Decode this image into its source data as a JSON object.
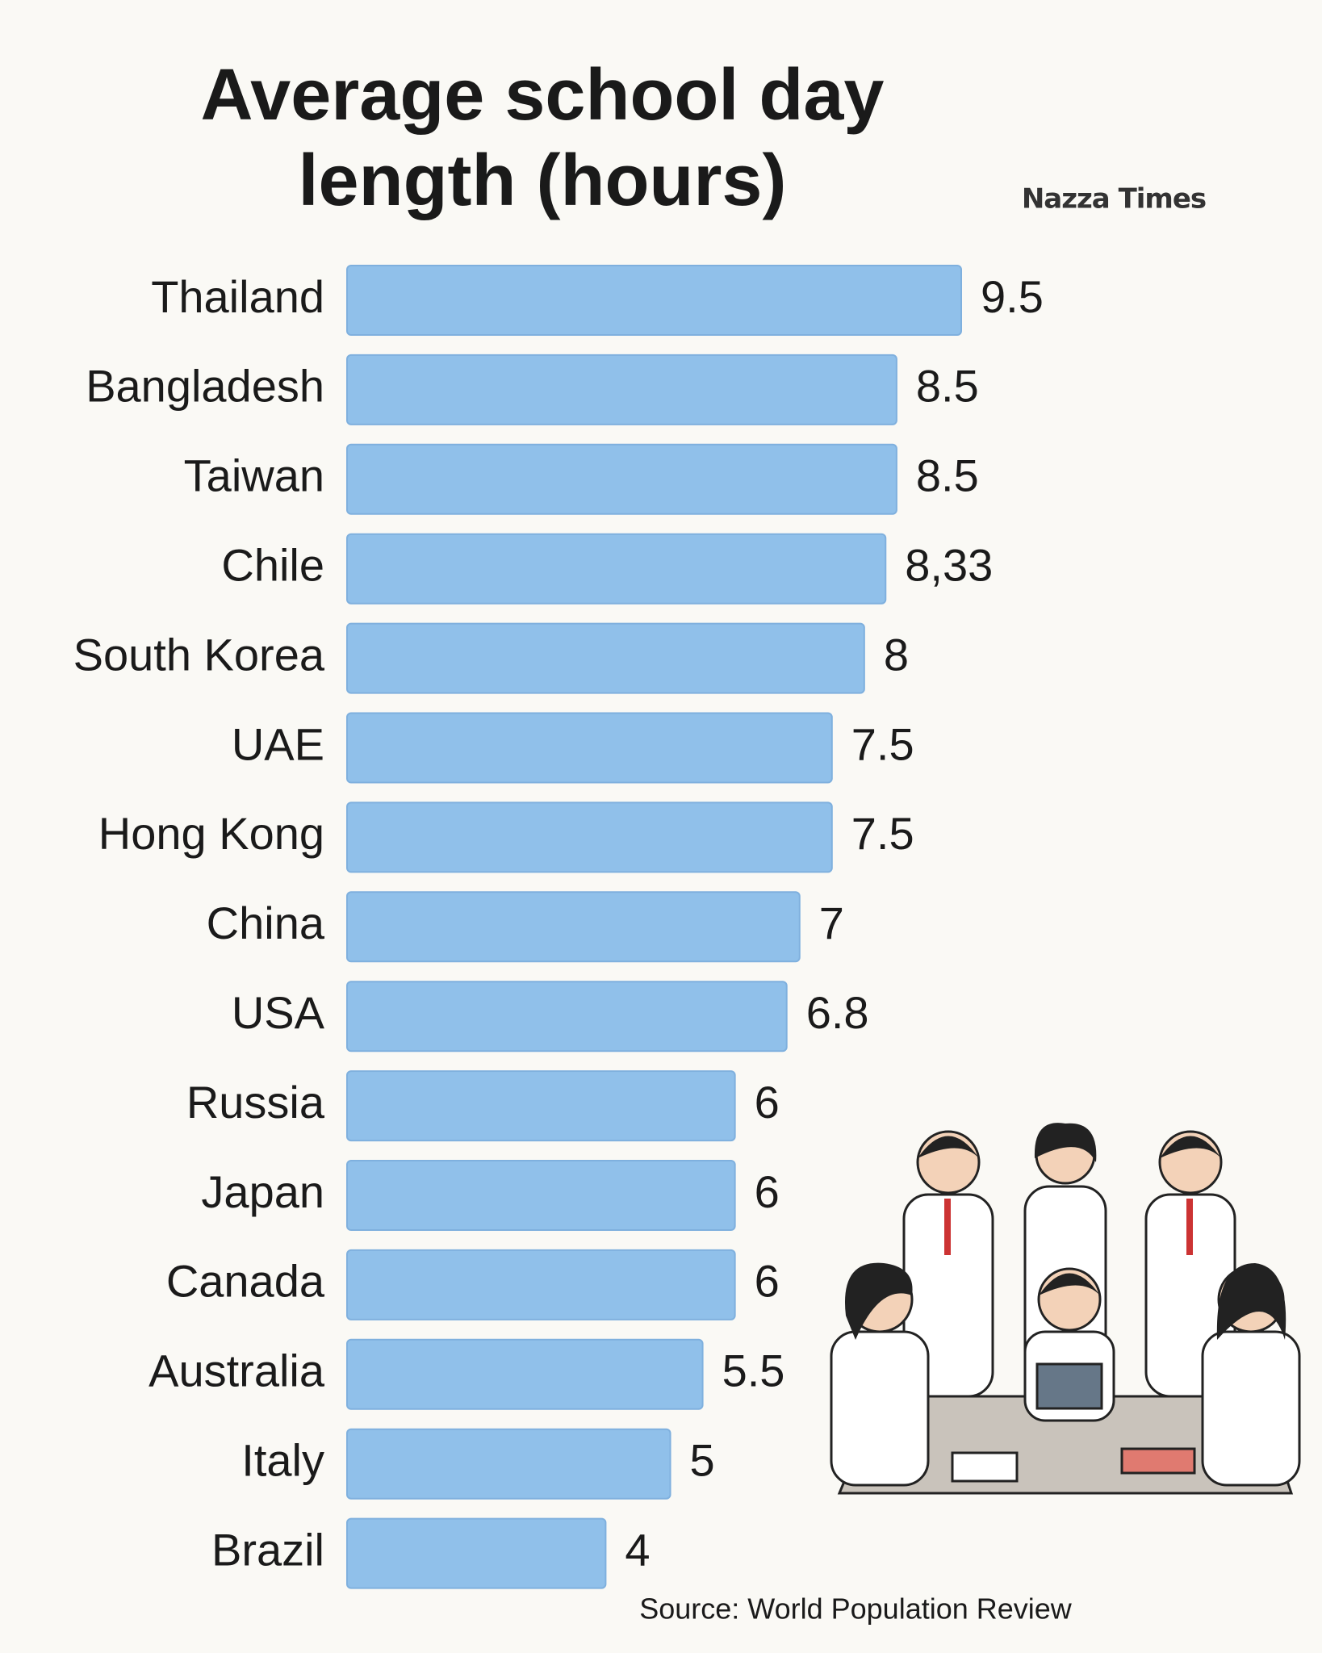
{
  "chart_data": {
    "type": "bar",
    "orientation": "horizontal",
    "title": "Average school day length (hours)",
    "brand": "Nazza Times",
    "source": "Source: World Population Review",
    "categories": [
      "Thailand",
      "Bangladesh",
      "Taiwan",
      "Chile",
      "South Korea",
      "UAE",
      "Hong Kong",
      "China",
      "USA",
      "Russia",
      "Japan",
      "Canada",
      "Australia",
      "Italy",
      "Brazil"
    ],
    "values": [
      9.5,
      8.5,
      8.5,
      8.33,
      8,
      7.5,
      7.5,
      7,
      6.8,
      6,
      6,
      6,
      5.5,
      5,
      4
    ],
    "value_labels": [
      "9.5",
      "8.5",
      "8.5",
      "8,33",
      "8",
      "7.5",
      "7.5",
      "7",
      "6.8",
      "6",
      "6",
      "6",
      "5.5",
      "5",
      "4"
    ],
    "color": "#90c0ea"
  }
}
